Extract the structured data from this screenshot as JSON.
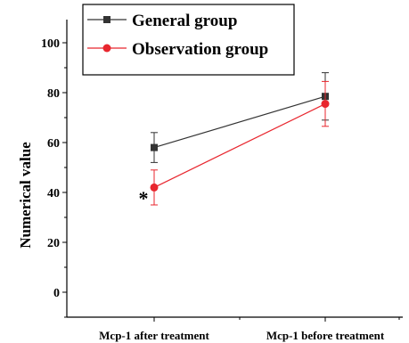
{
  "chart_data": {
    "type": "line",
    "categories": [
      "Mcp-1 after treatment",
      "Mcp-1 before treatment"
    ],
    "ylabel": "Numerical value",
    "ylim": [
      -10,
      100
    ],
    "yticks": [
      0,
      20,
      40,
      60,
      80,
      100
    ],
    "series": [
      {
        "name": "General group",
        "color": "#333333",
        "marker": "square",
        "values": [
          58,
          78.5
        ],
        "errors": [
          6,
          9.5
        ]
      },
      {
        "name": "Observation group",
        "color": "#e8262e",
        "marker": "circle",
        "values": [
          42,
          75.5
        ],
        "errors": [
          7,
          9
        ]
      }
    ],
    "annotations": [
      {
        "text": "*",
        "category": "Mcp-1 after treatment",
        "y": 40
      }
    ],
    "legend": "top"
  }
}
